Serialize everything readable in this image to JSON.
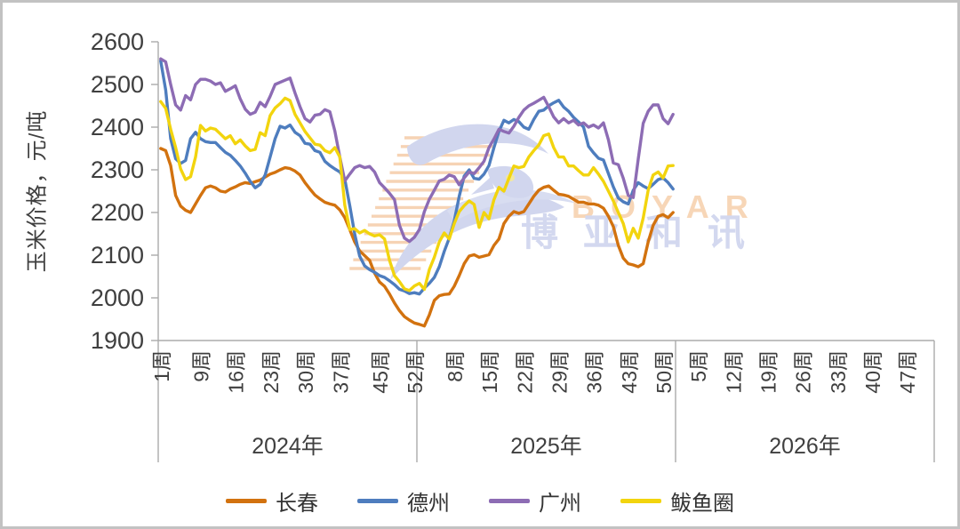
{
  "y_axis_title": "玉米价格，元/吨",
  "watermark": {
    "latin": "BOYAR",
    "cjk": "博亚和讯"
  },
  "chart_data": {
    "type": "line",
    "title": "",
    "xlabel": "",
    "ylabel": "玉米价格，元/吨",
    "grid": false,
    "legend_position": "bottom",
    "y_axis": {
      "min": 1900,
      "max": 2600,
      "step": 100,
      "ticks": [
        1900,
        2000,
        2100,
        2200,
        2300,
        2400,
        2500,
        2600
      ]
    },
    "x_axis": {
      "unit": "周",
      "weeks_per_year": 52,
      "years": [
        {
          "label": "2024年",
          "week_ticks": [
            "1周",
            "9周",
            "16周",
            "23周",
            "30周",
            "37周",
            "45周",
            "52周"
          ]
        },
        {
          "label": "2025年",
          "week_ticks": [
            "8周",
            "15周",
            "22周",
            "29周",
            "36周",
            "43周",
            "50周"
          ]
        },
        {
          "label": "2026年",
          "week_ticks": [
            "5周",
            "12周",
            "19周",
            "26周",
            "33周",
            "40周",
            "47周"
          ]
        }
      ]
    },
    "series": [
      {
        "name": "长春",
        "color": "#D2720F",
        "start_year": 2024,
        "start_week": 1,
        "values": [
          2350,
          2345,
          2310,
          2240,
          2215,
          2205,
          2200,
          2220,
          2240,
          2258,
          2262,
          2258,
          2250,
          2248,
          2255,
          2260,
          2266,
          2270,
          2268,
          2272,
          2276,
          2283,
          2290,
          2294,
          2300,
          2305,
          2303,
          2297,
          2288,
          2270,
          2255,
          2241,
          2232,
          2224,
          2220,
          2217,
          2206,
          2188,
          2160,
          2131,
          2110,
          2099,
          2088,
          2058,
          2037,
          2027,
          2009,
          1988,
          1970,
          1956,
          1948,
          1941,
          1938,
          1934,
          1960,
          1994,
          2005,
          2008,
          2009,
          2027,
          2052,
          2080,
          2098,
          2101,
          2095,
          2098,
          2101,
          2123,
          2138,
          2174,
          2191,
          2202,
          2198,
          2202,
          2220,
          2238,
          2252,
          2259,
          2262,
          2252,
          2243,
          2241,
          2238,
          2231,
          2224,
          2224,
          2220,
          2220,
          2217,
          2210,
          2191,
          2167,
          2123,
          2093,
          2080,
          2077,
          2073,
          2080,
          2131,
          2170,
          2191,
          2195,
          2188,
          2200
        ]
      },
      {
        "name": "德州",
        "color": "#4E7DBE",
        "start_year": 2024,
        "start_week": 1,
        "values": [
          2555,
          2487,
          2373,
          2326,
          2315,
          2322,
          2373,
          2388,
          2373,
          2366,
          2364,
          2364,
          2352,
          2341,
          2334,
          2322,
          2309,
          2292,
          2273,
          2258,
          2266,
          2288,
          2330,
          2373,
          2402,
          2398,
          2405,
          2388,
          2380,
          2362,
          2360,
          2345,
          2341,
          2320,
          2310,
          2302,
          2295,
          2278,
          2216,
          2150,
          2098,
          2075,
          2066,
          2060,
          2052,
          2048,
          2040,
          2031,
          2020,
          2016,
          2010,
          2012,
          2009,
          2023,
          2034,
          2048,
          2073,
          2109,
          2140,
          2180,
          2238,
          2285,
          2300,
          2280,
          2278,
          2290,
          2310,
          2352,
          2390,
          2416,
          2410,
          2418,
          2413,
          2400,
          2395,
          2418,
          2437,
          2440,
          2450,
          2457,
          2463,
          2447,
          2437,
          2423,
          2412,
          2400,
          2355,
          2340,
          2327,
          2323,
          2291,
          2260,
          2234,
          2225,
          2220,
          2252,
          2270,
          2262,
          2256,
          2266,
          2277,
          2281,
          2270,
          2255
        ]
      },
      {
        "name": "广州",
        "color": "#8D6CB4",
        "start_year": 2024,
        "start_week": 1,
        "values": [
          2560,
          2553,
          2500,
          2452,
          2440,
          2474,
          2464,
          2500,
          2512,
          2512,
          2508,
          2500,
          2504,
          2484,
          2490,
          2497,
          2466,
          2442,
          2430,
          2435,
          2458,
          2448,
          2472,
          2500,
          2505,
          2510,
          2515,
          2480,
          2448,
          2420,
          2412,
          2428,
          2430,
          2441,
          2436,
          2391,
          2330,
          2274,
          2290,
          2305,
          2310,
          2305,
          2308,
          2295,
          2270,
          2258,
          2245,
          2230,
          2170,
          2140,
          2132,
          2142,
          2160,
          2202,
          2231,
          2252,
          2274,
          2278,
          2288,
          2284,
          2265,
          2281,
          2295,
          2291,
          2305,
          2320,
          2352,
          2372,
          2395,
          2390,
          2386,
          2402,
          2423,
          2440,
          2450,
          2456,
          2463,
          2470,
          2448,
          2424,
          2410,
          2420,
          2410,
          2416,
          2405,
          2410,
          2400,
          2405,
          2398,
          2410,
          2370,
          2316,
          2312,
          2280,
          2240,
          2235,
          2325,
          2409,
          2437,
          2452,
          2452,
          2420,
          2408,
          2430
        ]
      },
      {
        "name": "鲅鱼圈",
        "color": "#F2D40E",
        "start_year": 2024,
        "start_week": 1,
        "values": [
          2460,
          2444,
          2395,
          2352,
          2302,
          2277,
          2284,
          2330,
          2404,
          2391,
          2398,
          2395,
          2384,
          2373,
          2380,
          2361,
          2370,
          2356,
          2345,
          2348,
          2387,
          2380,
          2427,
          2445,
          2455,
          2468,
          2462,
          2430,
          2410,
          2390,
          2375,
          2360,
          2358,
          2345,
          2340,
          2352,
          2330,
          2217,
          2160,
          2162,
          2152,
          2158,
          2150,
          2145,
          2148,
          2138,
          2088,
          2052,
          2038,
          2021,
          2017,
          2028,
          2034,
          2020,
          2066,
          2095,
          2131,
          2152,
          2138,
          2174,
          2202,
          2216,
          2227,
          2219,
          2165,
          2200,
          2185,
          2230,
          2259,
          2250,
          2280,
          2309,
          2305,
          2308,
          2330,
          2345,
          2358,
          2380,
          2384,
          2352,
          2330,
          2330,
          2309,
          2309,
          2298,
          2288,
          2288,
          2305,
          2290,
          2273,
          2250,
          2227,
          2200,
          2174,
          2131,
          2163,
          2140,
          2187,
          2252,
          2288,
          2295,
          2281,
          2309,
          2310
        ]
      }
    ]
  }
}
